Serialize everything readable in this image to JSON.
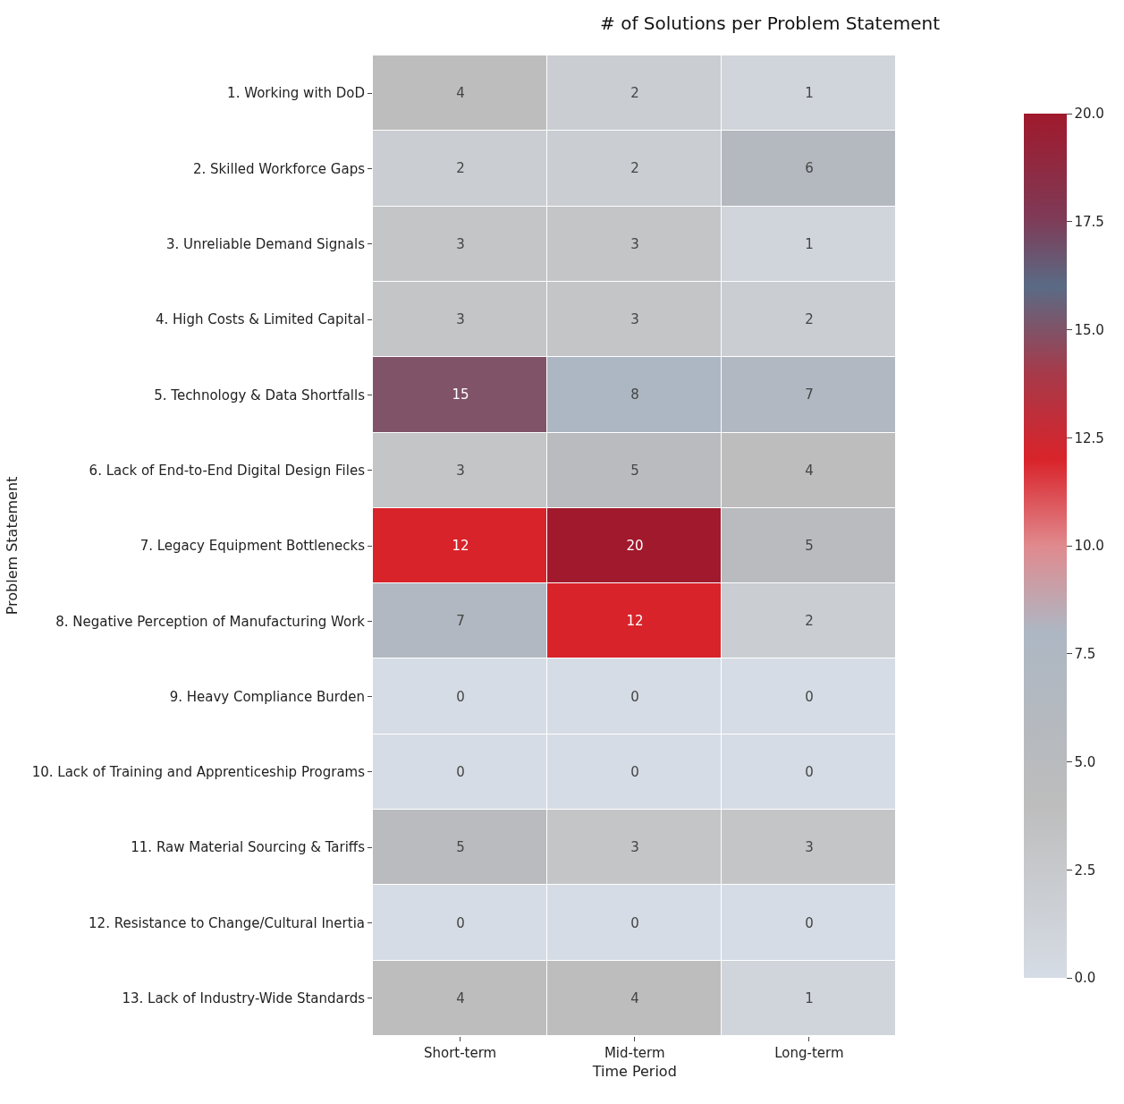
{
  "chart_data": {
    "type": "heatmap",
    "title": "# of Solutions per Problem Statement",
    "xlabel": "Time Period",
    "ylabel": "Problem Statement",
    "categories": [
      "Short-term",
      "Mid-term",
      "Long-term"
    ],
    "y_categories": [
      "1. Working with DoD",
      "2. Skilled Workforce Gaps",
      "3. Unreliable Demand Signals",
      "4. High Costs & Limited Capital",
      "5. Technology & Data Shortfalls",
      "6. Lack of End-to-End Digital Design Files",
      "7. Legacy Equipment Bottlenecks",
      "8. Negative Perception of Manufacturing Work",
      "9. Heavy Compliance Burden",
      "10. Lack of Training and Apprenticeship Programs",
      "11. Raw Material Sourcing & Tariffs",
      "12. Resistance to Change/Cultural Inertia",
      "13. Lack of Industry-Wide Standards"
    ],
    "cells": [
      [
        4,
        2,
        1
      ],
      [
        2,
        2,
        6
      ],
      [
        3,
        3,
        1
      ],
      [
        3,
        3,
        2
      ],
      [
        15,
        8,
        7
      ],
      [
        3,
        5,
        4
      ],
      [
        12,
        20,
        5
      ],
      [
        7,
        12,
        2
      ],
      [
        0,
        0,
        0
      ],
      [
        0,
        0,
        0
      ],
      [
        5,
        3,
        3
      ],
      [
        0,
        0,
        0
      ],
      [
        4,
        4,
        1
      ]
    ],
    "clim": [
      0,
      20
    ],
    "cticks": [
      {
        "value": 0,
        "label": "0.0"
      },
      {
        "value": 2.5,
        "label": "2.5"
      },
      {
        "value": 5,
        "label": "5.0"
      },
      {
        "value": 7.5,
        "label": "7.5"
      },
      {
        "value": 10,
        "label": "10.0"
      },
      {
        "value": 12.5,
        "label": "12.5"
      },
      {
        "value": 15,
        "label": "15.0"
      },
      {
        "value": 17.5,
        "label": "17.5"
      },
      {
        "value": 20,
        "label": "20.0"
      }
    ],
    "data_labels": true
  }
}
